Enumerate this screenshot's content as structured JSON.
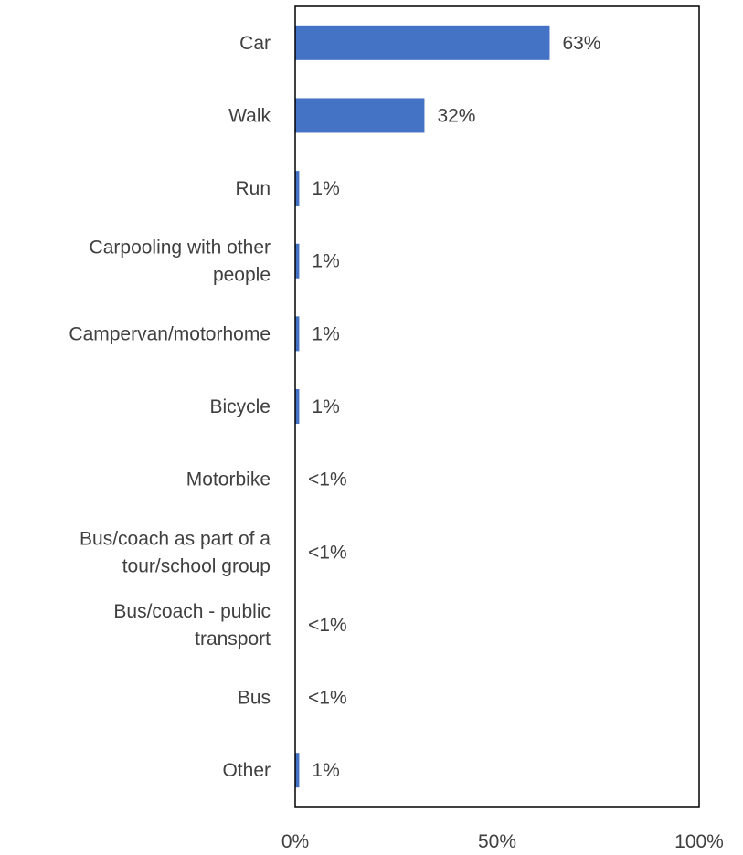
{
  "chart_data": {
    "type": "bar",
    "orientation": "horizontal",
    "categories": [
      "Car",
      "Walk",
      "Run",
      "Carpooling with other people",
      "Campervan/motorhome",
      "Bicycle",
      "Motorbike",
      "Bus/coach as part of a tour/school group",
      "Bus/coach - public transport",
      "Bus",
      "Other"
    ],
    "category_lines": [
      [
        "Car"
      ],
      [
        "Walk"
      ],
      [
        "Run"
      ],
      [
        "Carpooling with other",
        "people"
      ],
      [
        "Campervan/motorhome"
      ],
      [
        "Bicycle"
      ],
      [
        "Motorbike"
      ],
      [
        "Bus/coach as part of a",
        "tour/school group"
      ],
      [
        "Bus/coach - public",
        "transport"
      ],
      [
        "Bus"
      ],
      [
        "Other"
      ]
    ],
    "values": [
      63,
      32,
      1,
      1,
      1,
      1,
      0.2,
      0.2,
      0.2,
      0.2,
      1
    ],
    "data_labels": [
      "63%",
      "32%",
      "1%",
      "1%",
      "1%",
      "1%",
      "<1%",
      "<1%",
      "<1%",
      "<1%",
      "1%"
    ],
    "xlim": [
      0,
      100
    ],
    "x_ticks": [
      0,
      50,
      100
    ],
    "x_tick_labels": [
      "0%",
      "50%",
      "100%"
    ],
    "bar_color": "#4472C4",
    "axis_color": "#000000",
    "text_color": "#404040",
    "grid": false,
    "legend": "none",
    "title": "",
    "xlabel": "",
    "ylabel": ""
  }
}
